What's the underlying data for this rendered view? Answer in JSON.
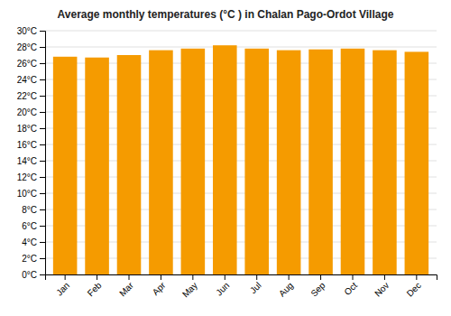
{
  "chart_data": {
    "type": "bar",
    "title": "Average monthly temperatures (°C ) in Chalan Pago-Ordot Village",
    "categories": [
      "Jan",
      "Feb",
      "Mar",
      "Apr",
      "May",
      "Jun",
      "Jul",
      "Aug",
      "Sep",
      "Oct",
      "Nov",
      "Dec"
    ],
    "values": [
      26.8,
      26.7,
      27.0,
      27.6,
      27.8,
      28.2,
      27.8,
      27.6,
      27.7,
      27.8,
      27.6,
      27.4
    ],
    "color": "#F59B00",
    "ylim": [
      0,
      30
    ],
    "yticks": [
      {
        "value": 0,
        "label": "0°C"
      },
      {
        "value": 2,
        "label": "2°C"
      },
      {
        "value": 4,
        "label": "4°C"
      },
      {
        "value": 6,
        "label": "6°C"
      },
      {
        "value": 8,
        "label": "8°C"
      },
      {
        "value": 10,
        "label": "10°C"
      },
      {
        "value": 12,
        "label": "12°C"
      },
      {
        "value": 14,
        "label": "14°C"
      },
      {
        "value": 16,
        "label": "16°C"
      },
      {
        "value": 18,
        "label": "18°C"
      },
      {
        "value": 20,
        "label": "20°C"
      },
      {
        "value": 22,
        "label": "22°C"
      },
      {
        "value": 24,
        "label": "24°C"
      },
      {
        "value": 26,
        "label": "26°C"
      },
      {
        "value": 28,
        "label": "28°C"
      },
      {
        "value": 30,
        "label": "30°C"
      }
    ],
    "grid": true
  }
}
